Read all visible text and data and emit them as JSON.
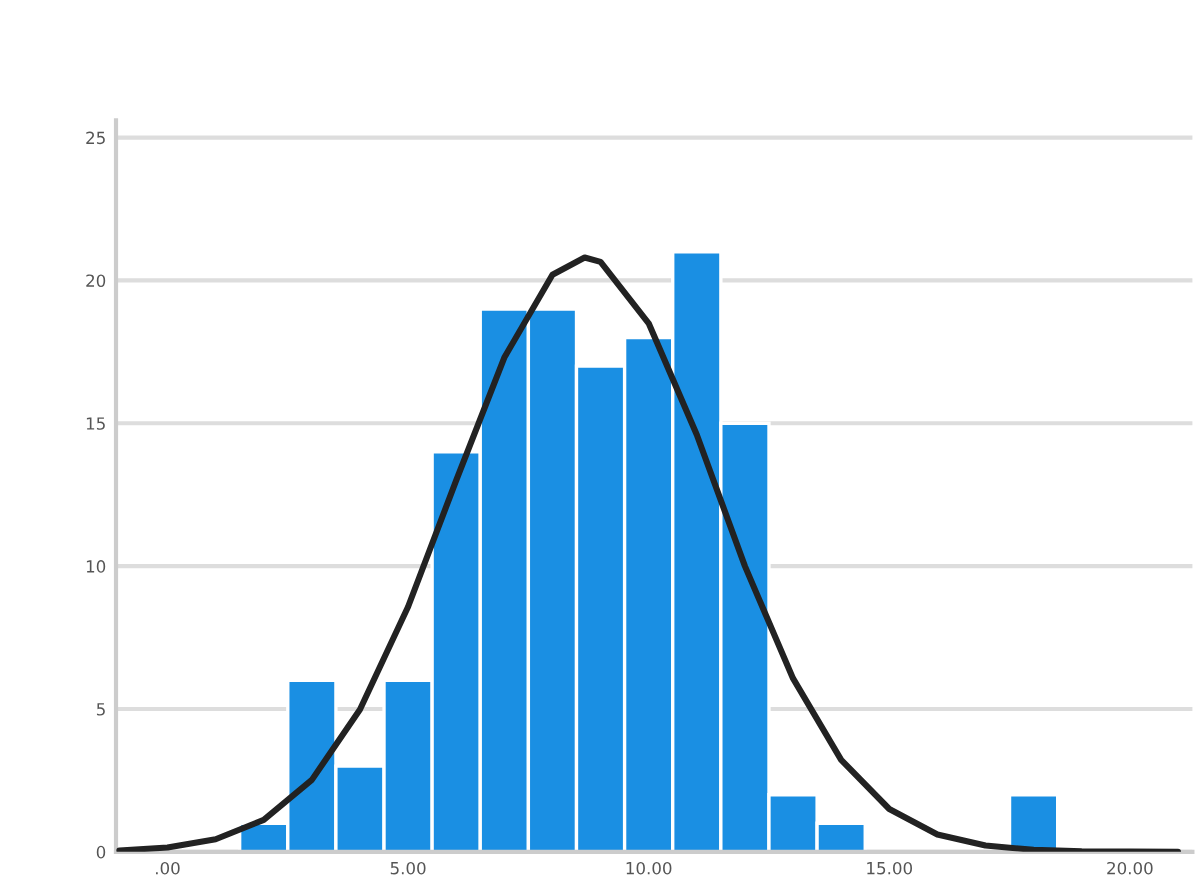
{
  "chart_data": {
    "type": "histogram",
    "series": [
      {
        "color": "#1a8fe3",
        "bins": [
          1.5,
          2.5,
          3.5,
          4.5,
          5.5,
          6.5,
          7.5,
          8.5,
          9.5,
          10.5,
          11.5,
          12.5,
          13.5,
          14.5,
          15.5,
          16.5,
          17.5,
          18.5
        ],
        "values": [
          1,
          6,
          3,
          6,
          14,
          19,
          19,
          17,
          18,
          21,
          15,
          2,
          1,
          0,
          0,
          0,
          2
        ]
      },
      {
        "type": "line",
        "color": "#222222",
        "x": [
          -1,
          0,
          1,
          2,
          3,
          4,
          5,
          6,
          7,
          8,
          8.67,
          9,
          10,
          11,
          12,
          13,
          14,
          15,
          16,
          17,
          18,
          19,
          20,
          21
        ],
        "values": [
          0.05,
          0.15,
          0.44,
          1.12,
          2.52,
          4.98,
          8.58,
          13.0,
          17.3,
          20.2,
          20.8,
          20.65,
          18.5,
          14.6,
          10.0,
          6.07,
          3.22,
          1.5,
          0.61,
          0.22,
          0.07,
          0.02,
          0.01,
          0.0
        ]
      }
    ],
    "xlim": [
      -1.07,
      21.3
    ],
    "ylim": [
      0,
      25.6
    ],
    "xticks": [
      {
        "value": 0,
        "label": ".00"
      },
      {
        "value": 5,
        "label": "5.00"
      },
      {
        "value": 10,
        "label": "10.00"
      },
      {
        "value": 15,
        "label": "15.00"
      },
      {
        "value": 20,
        "label": "20.00"
      }
    ],
    "yticks": [
      0,
      5,
      10,
      15,
      20,
      25
    ],
    "grid": "y",
    "line_style": "solid",
    "marker": "none"
  }
}
